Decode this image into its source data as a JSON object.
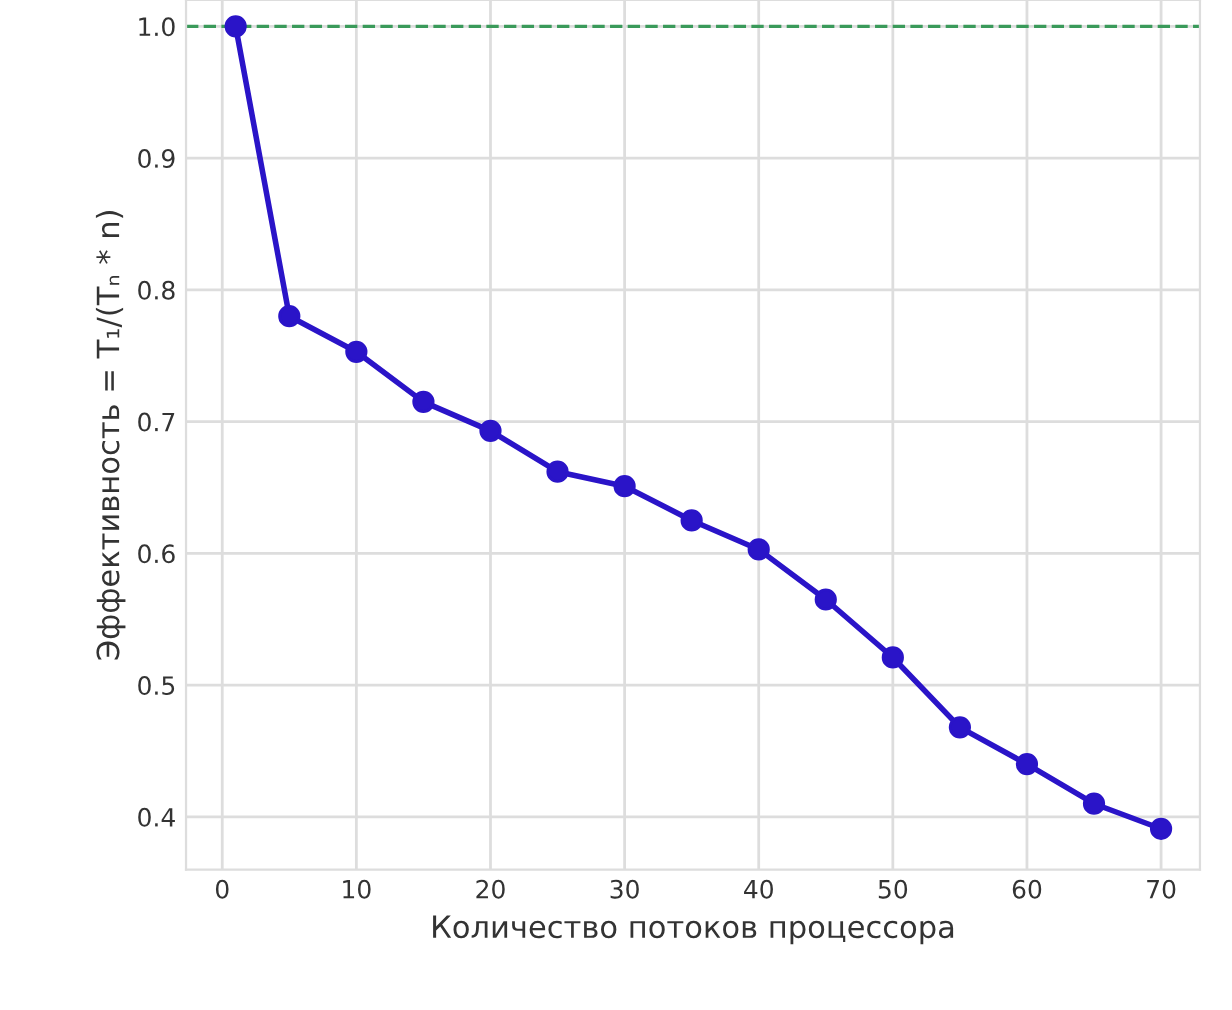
{
  "chart_data": {
    "type": "line",
    "xlabel": "Количество потоков процессора",
    "ylabel": "Эффективность = T₁/(Tₙ * n)",
    "x": [
      1,
      5,
      10,
      15,
      20,
      25,
      30,
      35,
      40,
      45,
      50,
      55,
      60,
      65,
      70
    ],
    "series": [
      {
        "color": "#2a14c8",
        "values": [
          1.0,
          0.78,
          0.753,
          0.715,
          0.693,
          0.662,
          0.651,
          0.625,
          0.603,
          0.565,
          0.521,
          0.468,
          0.44,
          0.41,
          0.391
        ]
      }
    ],
    "xlim": [
      -2.7,
      72.9
    ],
    "ylim": [
      0.36,
      1.02
    ],
    "xticks": [
      0,
      10,
      20,
      30,
      40,
      50,
      60,
      70
    ],
    "yticks": [
      {
        "value": 0.4,
        "label": "0.4"
      },
      {
        "value": 0.5,
        "label": "0.5"
      },
      {
        "value": 0.6,
        "label": "0.6"
      },
      {
        "value": 0.7,
        "label": "0.7"
      },
      {
        "value": 0.8,
        "label": "0.8"
      },
      {
        "value": 0.9,
        "label": "0.9"
      },
      {
        "value": 1.0,
        "label": "1.0"
      }
    ],
    "ref_lines": [
      {
        "axis": "y",
        "value": 1.0,
        "color": "#3a9a5a",
        "line_style": "dashed"
      }
    ],
    "grid": true,
    "marker": "circle",
    "line_style": "solid"
  }
}
